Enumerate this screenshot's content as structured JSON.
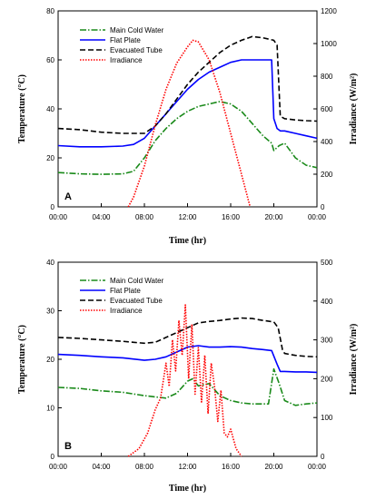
{
  "chart_data": [
    {
      "type": "line",
      "panel_label": "A",
      "xlabel": "Time (hr)",
      "ylabel_left": "Temperature (°C)",
      "ylabel_right": "Irradiance (W/m²)",
      "x_tick_labels": [
        "00:00",
        "04:00",
        "08:00",
        "12:00",
        "16:00",
        "20:00",
        "00:00"
      ],
      "xlim": [
        0,
        24
      ],
      "ylim_left": [
        0,
        80
      ],
      "ylim_right": [
        0,
        1200
      ],
      "y_ticks_left": [
        "0",
        "20",
        "40",
        "60",
        "80"
      ],
      "y_ticks_right": [
        "0",
        "200",
        "400",
        "600",
        "800",
        "1000",
        "1200"
      ],
      "legend_position": "top-left",
      "series": [
        {
          "name": "Main Cold Water",
          "axis": "left",
          "color": "#1a8a1a",
          "style": "dash-dot",
          "x": [
            0,
            2,
            4,
            6,
            7,
            8,
            9,
            10,
            11,
            12,
            13,
            14,
            15,
            16,
            17,
            18,
            19,
            19.8,
            20,
            20.5,
            21,
            22,
            23,
            24
          ],
          "y": [
            14,
            13.5,
            13.3,
            13.5,
            14.5,
            20,
            27,
            32,
            36,
            39,
            41,
            42,
            43,
            42,
            39,
            34,
            29,
            26,
            23,
            25,
            26,
            20,
            17,
            16
          ]
        },
        {
          "name": "Flat Plate",
          "axis": "left",
          "color": "#0000ff",
          "style": "solid",
          "x": [
            0,
            2,
            4,
            6,
            7,
            8,
            9,
            10,
            11,
            12,
            13,
            14,
            15,
            16,
            17,
            18,
            19,
            19.8,
            20,
            20.3,
            20.6,
            21,
            22,
            23,
            24
          ],
          "y": [
            25,
            24.5,
            24.5,
            24.8,
            25.5,
            28,
            33,
            38,
            43,
            48,
            52,
            55,
            57,
            59,
            60,
            60,
            60,
            60,
            36,
            32,
            31,
            31,
            30,
            29,
            28
          ]
        },
        {
          "name": "Evacuated Tube",
          "axis": "left",
          "color": "#000000",
          "style": "dash",
          "x": [
            0,
            2,
            4,
            6,
            7,
            8,
            9,
            10,
            11,
            12,
            13,
            14,
            15,
            16,
            17,
            18,
            19,
            20,
            20.3,
            20.6,
            21,
            22,
            23,
            24
          ],
          "y": [
            32,
            31.5,
            30.5,
            30,
            30,
            30,
            33,
            38,
            44,
            50,
            55,
            59,
            63,
            66,
            68,
            69.5,
            69,
            68,
            66,
            37,
            36,
            35.5,
            35.2,
            35
          ]
        },
        {
          "name": "Irradiance",
          "axis": "right",
          "color": "#ff0000",
          "style": "dot",
          "x": [
            6.5,
            7,
            8,
            9,
            10,
            11,
            12,
            12.5,
            13,
            14,
            15,
            16,
            17,
            17.8
          ],
          "y": [
            0,
            60,
            250,
            500,
            720,
            880,
            980,
            1020,
            1010,
            900,
            700,
            450,
            200,
            0
          ]
        }
      ]
    },
    {
      "type": "line",
      "panel_label": "B",
      "xlabel": "Time (hr)",
      "ylabel_left": "Temperature (°C)",
      "ylabel_right": "Irradiance (W/m²)",
      "x_tick_labels": [
        "00:00",
        "04:00",
        "08:00",
        "12:00",
        "16:00",
        "20:00",
        "00:00"
      ],
      "xlim": [
        0,
        24
      ],
      "ylim_left": [
        0,
        40
      ],
      "ylim_right": [
        0,
        500
      ],
      "y_ticks_left": [
        "0",
        "10",
        "20",
        "30",
        "40"
      ],
      "y_ticks_right": [
        "0",
        "100",
        "200",
        "300",
        "400",
        "500"
      ],
      "legend_position": "top-left",
      "series": [
        {
          "name": "Main Cold Water",
          "axis": "left",
          "color": "#1a8a1a",
          "style": "dash-dot",
          "x": [
            0,
            2,
            4,
            6,
            8,
            10,
            11,
            12,
            12.5,
            13,
            14,
            15,
            16,
            17,
            18,
            19.5,
            20,
            20.5,
            21,
            22,
            23,
            24
          ],
          "y": [
            14.2,
            14,
            13.5,
            13.2,
            12.5,
            12,
            13,
            15.5,
            16,
            14.5,
            15,
            12.5,
            11.5,
            11,
            10.8,
            10.8,
            18,
            15,
            11.5,
            10.5,
            10.8,
            11
          ]
        },
        {
          "name": "Flat Plate",
          "axis": "left",
          "color": "#0000ff",
          "style": "solid",
          "x": [
            0,
            2,
            4,
            6,
            8,
            9,
            10,
            11,
            12,
            13,
            14,
            15,
            16,
            17,
            18,
            19,
            19.8,
            20.3,
            20.6,
            21,
            22,
            23,
            24
          ],
          "y": [
            21,
            20.8,
            20.5,
            20.3,
            19.8,
            20,
            20.5,
            21.5,
            22.5,
            22.8,
            22.5,
            22.5,
            22.6,
            22.5,
            22.2,
            22,
            21.8,
            19,
            17.5,
            17.5,
            17.4,
            17.4,
            17.3
          ]
        },
        {
          "name": "Evacuated Tube",
          "axis": "left",
          "color": "#000000",
          "style": "dash",
          "x": [
            0,
            2,
            4,
            6,
            7,
            8,
            9,
            10,
            11,
            12,
            13,
            14,
            15,
            16,
            17,
            18,
            19,
            20,
            20.4,
            20.8,
            21,
            22,
            23,
            24
          ],
          "y": [
            24.5,
            24.3,
            24,
            23.7,
            23.5,
            23.3,
            23.5,
            24.5,
            25.5,
            26.5,
            27.5,
            27.8,
            28,
            28.3,
            28.5,
            28.4,
            28,
            27.7,
            26.5,
            22,
            21.2,
            20.8,
            20.6,
            20.5
          ]
        },
        {
          "name": "Irradiance",
          "axis": "right",
          "color": "#ff0000",
          "style": "dot",
          "x": [
            6.5,
            7.5,
            8.3,
            9,
            9.5,
            10,
            10.3,
            10.6,
            10.9,
            11.2,
            11.5,
            11.8,
            12.1,
            12.4,
            12.7,
            13,
            13.3,
            13.6,
            13.9,
            14.2,
            14.5,
            14.8,
            15.1,
            15.4,
            15.7,
            16,
            16.5,
            17
          ],
          "y": [
            0,
            20,
            60,
            120,
            150,
            240,
            180,
            300,
            220,
            350,
            260,
            390,
            200,
            340,
            160,
            280,
            140,
            260,
            110,
            240,
            180,
            90,
            170,
            60,
            50,
            70,
            20,
            0
          ]
        }
      ]
    }
  ]
}
